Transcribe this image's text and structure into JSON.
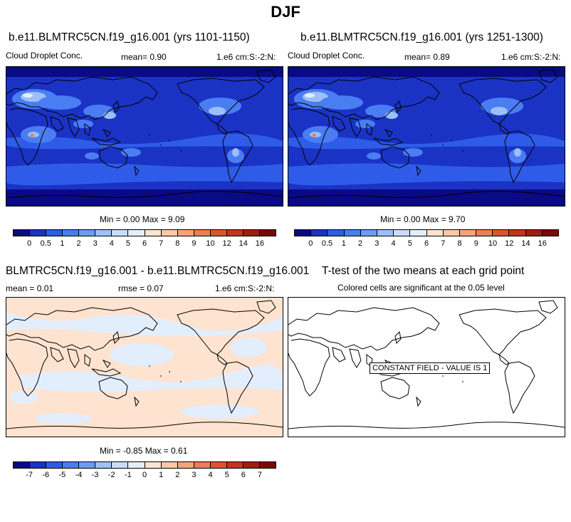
{
  "page": {
    "title": "DJF"
  },
  "panels": {
    "top_left": {
      "title": "b.e11.BLMTRC5CN.f19_g16.001 (yrs 1101-1150)",
      "variable": "Cloud Droplet Conc.",
      "mean_text": "mean=   0.90",
      "units": "1.e6 cm:S:-2:N:",
      "minmax": "Min =   0.00 Max =   9.09"
    },
    "top_right": {
      "title": "b.e11.BLMTRC5CN.f19_g16.001 (yrs 1251-1300)",
      "variable": "Cloud Droplet Conc.",
      "mean_text": "mean=   0.89",
      "units": "1.e6 cm:S:-2:N:",
      "minmax": "Min =   0.00 Max =   9.70"
    },
    "bottom_left": {
      "title": "BLMTRC5CN.f19_g16.001 - b.e11.BLMTRC5CN.f19_g16.001",
      "mean_text": "mean =   0.01",
      "rmse_text": "rmse =   0.07",
      "units": "1.e6 cm:S:-2:N:",
      "minmax": "Min =  -0.85 Max =   0.61"
    },
    "bottom_right": {
      "title": "T-test of the two means at each grid point",
      "subtitle": "Colored cells are significant at the 0.05 level",
      "constant_label": "CONSTANT FIELD - VALUE IS 1"
    }
  },
  "chart_data": [
    {
      "type": "heatmap",
      "title": "b.e11.BLMTRC5CN.f19_g16.001 (yrs 1101-1150)",
      "variable": "Cloud Droplet Conc.",
      "units": "1.e6 cm:S:-2:N:",
      "mean": 0.9,
      "min": 0.0,
      "max": 9.09,
      "colorbar_levels": [
        "0",
        "0.5",
        "1",
        "2",
        "3",
        "4",
        "5",
        "6",
        "7",
        "8",
        "9",
        "10",
        "12",
        "14",
        "16"
      ],
      "colorbar_colors": [
        "#0a0a84",
        "#1a33c4",
        "#2e5ce8",
        "#4a7df2",
        "#6b9bf7",
        "#9cc0f9",
        "#c9ddfb",
        "#e3eefd",
        "#fde3d0",
        "#fbc7a4",
        "#f5a37a",
        "#ee7c55",
        "#e0522f",
        "#c3341c",
        "#a31c0f",
        "#790a06"
      ]
    },
    {
      "type": "heatmap",
      "title": "b.e11.BLMTRC5CN.f19_g16.001 (yrs 1251-1300)",
      "variable": "Cloud Droplet Conc.",
      "units": "1.e6 cm:S:-2:N:",
      "mean": 0.89,
      "min": 0.0,
      "max": 9.7,
      "colorbar_levels": [
        "0",
        "0.5",
        "1",
        "2",
        "3",
        "4",
        "5",
        "6",
        "7",
        "8",
        "9",
        "10",
        "12",
        "14",
        "16"
      ],
      "colorbar_colors": [
        "#0a0a84",
        "#1a33c4",
        "#2e5ce8",
        "#4a7df2",
        "#6b9bf7",
        "#9cc0f9",
        "#c9ddfb",
        "#e3eefd",
        "#fde3d0",
        "#fbc7a4",
        "#f5a37a",
        "#ee7c55",
        "#e0522f",
        "#c3341c",
        "#a31c0f",
        "#790a06"
      ]
    },
    {
      "type": "heatmap",
      "title": "BLMTRC5CN.f19_g16.001 - b.e11.BLMTRC5CN.f19_g16.001",
      "units": "1.e6 cm:S:-2:N:",
      "mean": 0.01,
      "rmse": 0.07,
      "min": -0.85,
      "max": 0.61,
      "colorbar_levels": [
        "-7",
        "-6",
        "-5",
        "-4",
        "-3",
        "-2",
        "-1",
        "0",
        "1",
        "2",
        "3",
        "4",
        "5",
        "6",
        "7"
      ],
      "colorbar_colors": [
        "#0a0a84",
        "#1a33c4",
        "#2e5ce8",
        "#4a7df2",
        "#6b9bf7",
        "#9cc0f9",
        "#c9ddfb",
        "#e3eefd",
        "#fde3d0",
        "#fbc7a4",
        "#f5a37a",
        "#ee7c55",
        "#e0522f",
        "#c3341c",
        "#a31c0f",
        "#790a06"
      ]
    },
    {
      "type": "heatmap",
      "title": "T-test of the two means at each grid point",
      "subtitle": "Colored cells are significant at the 0.05 level",
      "annotation": "CONSTANT FIELD - VALUE IS 1"
    }
  ]
}
